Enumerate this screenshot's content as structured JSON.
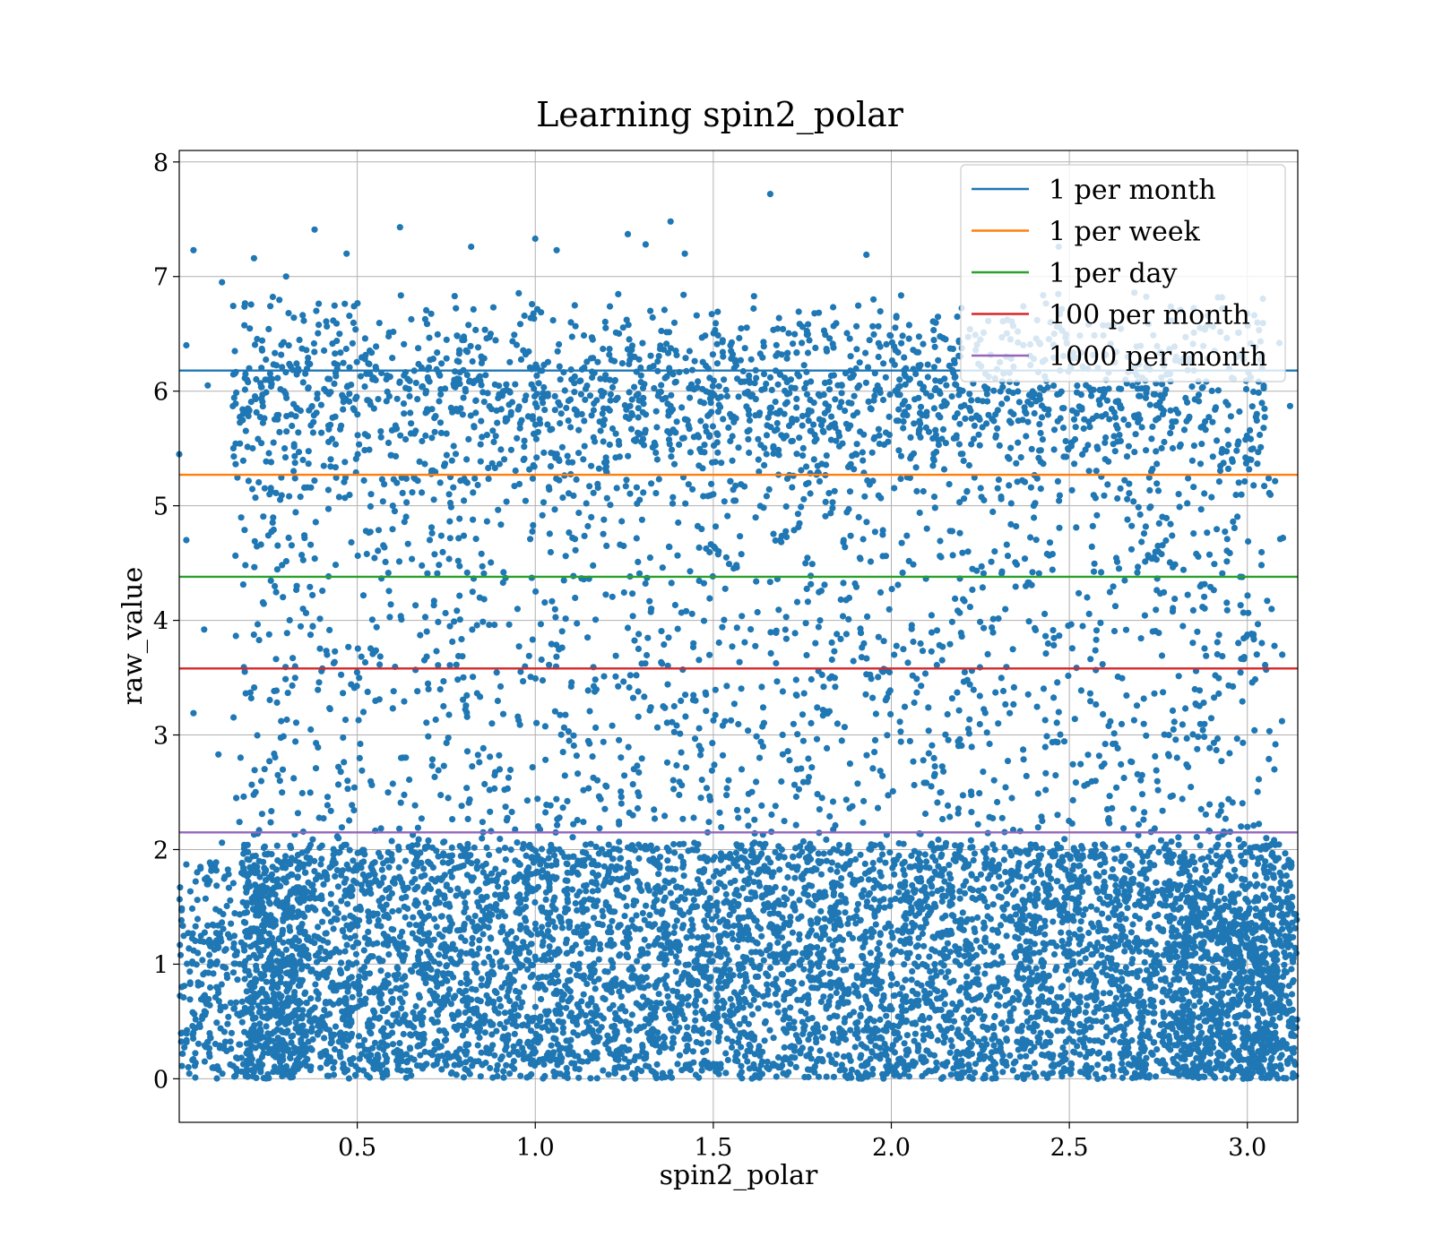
{
  "chart_data": {
    "type": "scatter",
    "title": "Learning spin2_polar",
    "xlabel": "spin2_polar",
    "ylabel": "raw_value",
    "xlim": [
      0.0,
      3.1416
    ],
    "ylim": [
      -0.38,
      8.1
    ],
    "grid": true,
    "legend_placement": "top-right",
    "x_ticks": [
      0.5,
      1.0,
      1.5,
      2.0,
      2.5,
      3.0
    ],
    "x_tick_labels": [
      "0.5",
      "1.0",
      "1.5",
      "2.0",
      "2.5",
      "3.0"
    ],
    "y_ticks": [
      0,
      1,
      2,
      3,
      4,
      5,
      6,
      7,
      8
    ],
    "y_tick_labels": [
      "0",
      "1",
      "2",
      "3",
      "4",
      "5",
      "6",
      "7",
      "8"
    ],
    "scatter_color": "#1f77b4",
    "thresholds": [
      {
        "name": "1 per month",
        "y": 6.18,
        "color": "#1f77b4"
      },
      {
        "name": "1 per week",
        "y": 5.27,
        "color": "#ff7f0e"
      },
      {
        "name": "1 per day",
        "y": 4.38,
        "color": "#2ca02c"
      },
      {
        "name": "100 per month",
        "y": 3.58,
        "color": "#d62728"
      },
      {
        "name": "1000 per month",
        "y": 2.15,
        "color": "#9467bd"
      }
    ],
    "points": [
      [
        1.66,
        7.72
      ],
      [
        0.62,
        7.43
      ],
      [
        1.38,
        7.48
      ],
      [
        0.38,
        7.41
      ],
      [
        0.04,
        7.23
      ],
      [
        1.0,
        7.33
      ],
      [
        0.82,
        7.26
      ],
      [
        1.26,
        7.37
      ],
      [
        1.42,
        7.2
      ],
      [
        1.06,
        7.23
      ],
      [
        1.93,
        7.19
      ],
      [
        2.47,
        7.26
      ],
      [
        0.47,
        7.2
      ],
      [
        0.21,
        7.16
      ],
      [
        1.31,
        7.28
      ],
      [
        0.3,
        7.0
      ],
      [
        0.12,
        6.95
      ],
      [
        0.02,
        6.4
      ],
      [
        0.08,
        6.05
      ],
      [
        0.0,
        5.45
      ],
      [
        0.02,
        4.7
      ],
      [
        0.04,
        3.19
      ],
      [
        0.07,
        3.92
      ],
      [
        0.11,
        2.83
      ],
      [
        0.16,
        2.45
      ],
      [
        0.12,
        2.06
      ],
      [
        0.02,
        1.87
      ],
      [
        3.1,
        4.72
      ],
      [
        3.12,
        5.87
      ],
      [
        3.09,
        6.42
      ],
      [
        3.05,
        3.61
      ],
      [
        3.02,
        3.04
      ],
      [
        3.07,
        1.97
      ],
      [
        3.12,
        1.89
      ],
      [
        3.11,
        1.64
      ],
      [
        2.98,
        4.38
      ],
      [
        2.97,
        5.48
      ],
      [
        2.93,
        6.72
      ],
      [
        2.95,
        2.84
      ],
      [
        2.91,
        3.52
      ],
      [
        0.56,
        1.97
      ],
      [
        0.9,
        2.7
      ],
      [
        1.2,
        2.55
      ],
      [
        1.63,
        2.8
      ],
      [
        2.14,
        2.5
      ],
      [
        2.62,
        2.36
      ],
      [
        2.83,
        2.97
      ],
      [
        0.7,
        3.4
      ],
      [
        1.45,
        3.3
      ],
      [
        2.3,
        3.1
      ],
      [
        0.95,
        4.1
      ],
      [
        1.8,
        4.0
      ],
      [
        2.55,
        4.2
      ],
      [
        0.33,
        4.3
      ],
      [
        1.2,
        4.65
      ],
      [
        2.1,
        4.8
      ],
      [
        2.75,
        4.6
      ],
      [
        0.6,
        5.0
      ],
      [
        1.5,
        5.1
      ],
      [
        2.4,
        5.0
      ],
      [
        0.85,
        5.6
      ],
      [
        1.75,
        5.7
      ],
      [
        2.6,
        5.55
      ],
      [
        0.45,
        6.5
      ],
      [
        1.1,
        6.6
      ],
      [
        1.95,
        6.8
      ],
      [
        2.8,
        6.3
      ],
      [
        0.25,
        6.1
      ],
      [
        1.55,
        6.35
      ],
      [
        2.25,
        6.45
      ]
    ]
  }
}
